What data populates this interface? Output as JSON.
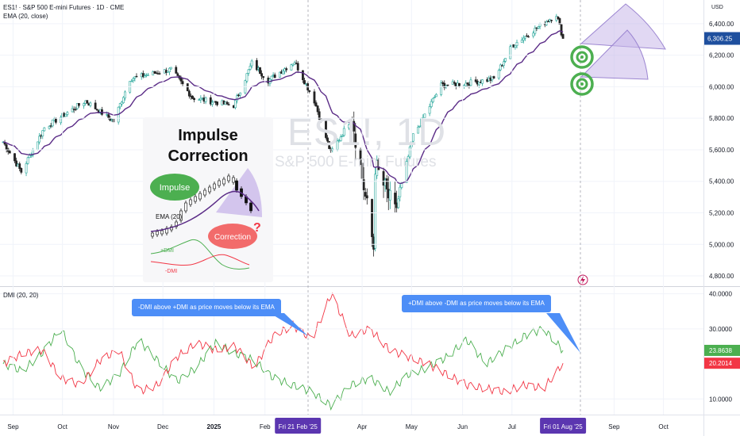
{
  "header": {
    "symbol_line": "ES1! · S&P 500 E-mini Futures · 1D · CME",
    "indicator_line": "EMA (20, close)"
  },
  "watermark": {
    "ticker": "ES1!, 1D",
    "name": "S&P 500 E-mini Futures"
  },
  "currency": "USD",
  "dmi": {
    "title": "DMI (20, 20)"
  },
  "callouts": [
    "-DMI above +DMI as price moves below its EMA",
    "+DMI above -DMI as price moves below its EMA"
  ],
  "inset": {
    "title_line1": "Impulse",
    "title_line2": "Correction",
    "impulse_label": "Impulse",
    "correction_label": "Correction",
    "question_mark": "?",
    "ema_label": "EMA (20)",
    "plus_dmi_label": "+DMI",
    "minus_dmi_label": "-DMI"
  },
  "colors": {
    "up": "#26a69a",
    "down": "#222222",
    "ema": "#5b2c87",
    "plus_dmi": "#4caf50",
    "minus_dmi": "#f23645",
    "callout": "#4d8ef7",
    "price_badge": "#1e4f9e",
    "target_green": "#4caf50",
    "fan_fill": "#c9b8ea",
    "date_badge": "#5b36b0"
  },
  "chart_data": [
    {
      "type": "candlestick",
      "title": "ES1! · S&P 500 E-mini Futures · 1D · CME",
      "series": [
        {
          "name": "ES1!"
        },
        {
          "name": "EMA (20, close)"
        }
      ],
      "y_ticks": [
        "6,400.00",
        "6,200.00",
        "6,000.00",
        "5,800.00",
        "5,600.00",
        "5,400.00",
        "5,200.00",
        "5,000.00",
        "4,800.00"
      ],
      "y_tick_values": [
        6400,
        6200,
        6000,
        5800,
        5600,
        5400,
        5200,
        5000,
        4800
      ],
      "ylim": [
        4760,
        6520
      ],
      "x_ticks": [
        "Sep",
        "Oct",
        "Nov",
        "Dec",
        "2025",
        "Feb",
        "Fri 21 Feb '25",
        "Apr",
        "May",
        "Jun",
        "Jul",
        "Fri 01 Aug '25",
        "Sep",
        "Oct"
      ],
      "last_price": "6,306.25",
      "last_price_value": 6306.25,
      "ohlc_anchors": {
        "dates": [
          "2024-08-26",
          "2024-09-06",
          "2024-09-20",
          "2024-10-15",
          "2024-11-01",
          "2024-11-11",
          "2024-12-06",
          "2024-12-19",
          "2025-01-13",
          "2025-01-24",
          "2025-02-03",
          "2025-02-19",
          "2025-03-03",
          "2025-03-13",
          "2025-03-26",
          "2025-04-08",
          "2025-04-09",
          "2025-04-21",
          "2025-05-02",
          "2025-05-19",
          "2025-06-02",
          "2025-06-20",
          "2025-07-01",
          "2025-07-28",
          "2025-08-01"
        ],
        "close": [
          5650,
          5460,
          5740,
          5910,
          5780,
          6050,
          6110,
          5930,
          5880,
          6150,
          6040,
          6160,
          5910,
          5580,
          5810,
          4980,
          5500,
          5200,
          5690,
          6010,
          6020,
          6050,
          6260,
          6460,
          6306.25
        ]
      }
    },
    {
      "type": "line",
      "title": "DMI (20, 20)",
      "series": [
        {
          "name": "+DMI",
          "last": "23.8638",
          "last_value": 23.8638,
          "anchors": [
            20,
            18,
            23,
            30,
            19,
            13,
            17,
            27,
            21,
            15,
            19,
            26,
            23,
            21,
            16,
            14,
            12,
            8,
            14,
            16,
            12,
            17,
            19,
            22,
            27,
            20,
            24,
            28,
            30,
            23.86
          ]
        },
        {
          "name": "-DMI",
          "last": "20.2014",
          "last_value": 20.2014,
          "anchors": [
            20,
            23,
            24,
            16,
            14,
            21,
            24,
            12,
            14,
            22,
            26,
            24,
            25,
            19,
            28,
            31,
            27,
            40,
            28,
            30,
            24,
            22,
            20,
            17,
            14,
            13,
            12,
            14,
            13,
            20.2
          ]
        }
      ],
      "y_ticks": [
        "40.0000",
        "30.0000",
        "10.0000"
      ],
      "y_tick_values": [
        40,
        30,
        10
      ],
      "ylim": [
        6,
        41.5
      ]
    }
  ]
}
